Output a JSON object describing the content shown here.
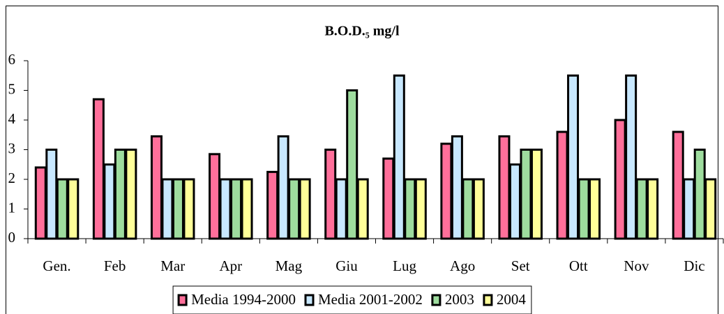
{
  "chart_data": {
    "type": "bar",
    "title": "B.O.D.₅ mg/l",
    "categories": [
      "Gen.",
      "Feb",
      "Mar",
      "Apr",
      "Mag",
      "Giu",
      "Lug",
      "Ago",
      "Set",
      "Ott",
      "Nov",
      "Dic"
    ],
    "series": [
      {
        "name": "Media 1994-2000",
        "color": "#ff6f9a",
        "values": [
          2.4,
          4.7,
          3.45,
          2.85,
          2.25,
          3,
          2.7,
          3.2,
          3.45,
          3.6,
          4,
          3.6
        ]
      },
      {
        "name": "Media 2001-2002",
        "color": "#c8e8ff",
        "values": [
          3,
          2.5,
          2,
          2,
          3.45,
          2,
          5.5,
          3.45,
          2.5,
          5.5,
          5.5,
          2
        ]
      },
      {
        "name": "2003",
        "color": "#9edc9e",
        "values": [
          2,
          3,
          2,
          2,
          2,
          5,
          2,
          2,
          3,
          2,
          2,
          3
        ]
      },
      {
        "name": "2004",
        "color": "#ffff99",
        "values": [
          2,
          3,
          2,
          2,
          2,
          2,
          2,
          2,
          3,
          2,
          2,
          2
        ]
      }
    ],
    "ylim": [
      0,
      6
    ],
    "yticks": [
      0,
      1,
      2,
      3,
      4,
      5,
      6
    ],
    "legend": "bottom"
  }
}
